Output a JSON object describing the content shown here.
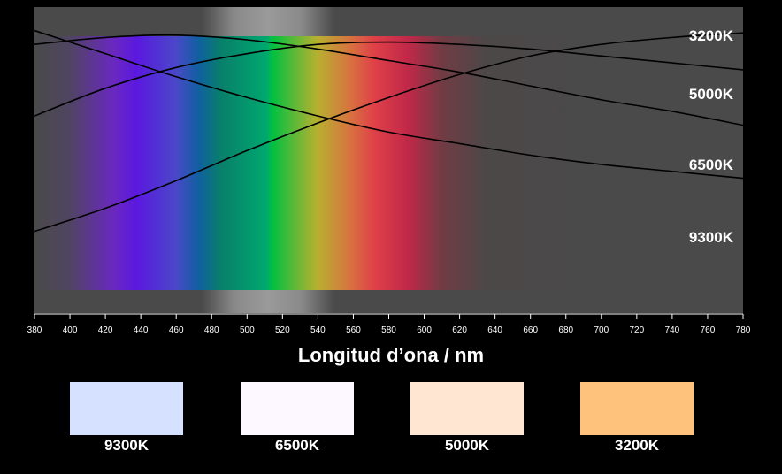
{
  "chart_data": {
    "type": "line",
    "xlabel": "Longitud d’ona / nm",
    "ylabel": "",
    "xlim": [
      380,
      780
    ],
    "ylim": [
      0,
      1
    ],
    "x_ticks": [
      380,
      400,
      420,
      440,
      460,
      480,
      500,
      520,
      540,
      560,
      580,
      600,
      620,
      640,
      660,
      680,
      700,
      720,
      740,
      760,
      780
    ],
    "grid": false,
    "series": [
      {
        "name": "3200K",
        "x": [
          380,
          420,
          460,
          500,
          540,
          580,
          620,
          660,
          700,
          740,
          780
        ],
        "y": [
          0.17,
          0.27,
          0.39,
          0.52,
          0.64,
          0.75,
          0.85,
          0.93,
          0.98,
          1.01,
          1.03
        ]
      },
      {
        "name": "5000K",
        "x": [
          380,
          420,
          460,
          500,
          540,
          580,
          620,
          660,
          700,
          740,
          780
        ],
        "y": [
          0.67,
          0.79,
          0.88,
          0.94,
          0.98,
          0.99,
          0.98,
          0.96,
          0.93,
          0.9,
          0.87
        ]
      },
      {
        "name": "6500K",
        "x": [
          380,
          420,
          460,
          500,
          540,
          580,
          620,
          660,
          700,
          740,
          780
        ],
        "y": [
          0.98,
          1.01,
          1.02,
          1.0,
          0.96,
          0.91,
          0.86,
          0.8,
          0.74,
          0.69,
          0.63
        ]
      },
      {
        "name": "9300K",
        "x": [
          380,
          420,
          460,
          500,
          540,
          580,
          620,
          660,
          700,
          740,
          780
        ],
        "y": [
          1.04,
          0.94,
          0.84,
          0.75,
          0.67,
          0.6,
          0.55,
          0.5,
          0.46,
          0.43,
          0.4
        ]
      }
    ],
    "curve_labels": [
      "3200K",
      "5000K",
      "6500K",
      "9300K"
    ]
  },
  "swatches": [
    {
      "label": "9300K",
      "color": "#d6e0ff"
    },
    {
      "label": "6500K",
      "color": "#fdf8ff"
    },
    {
      "label": "5000K",
      "color": "#ffe6d2"
    },
    {
      "label": "3200K",
      "color": "#ffc27d"
    }
  ],
  "colors": {
    "background": "#000000",
    "plot_background": "#4a4a4a",
    "curve": "#000000",
    "text": "#ffffff"
  }
}
